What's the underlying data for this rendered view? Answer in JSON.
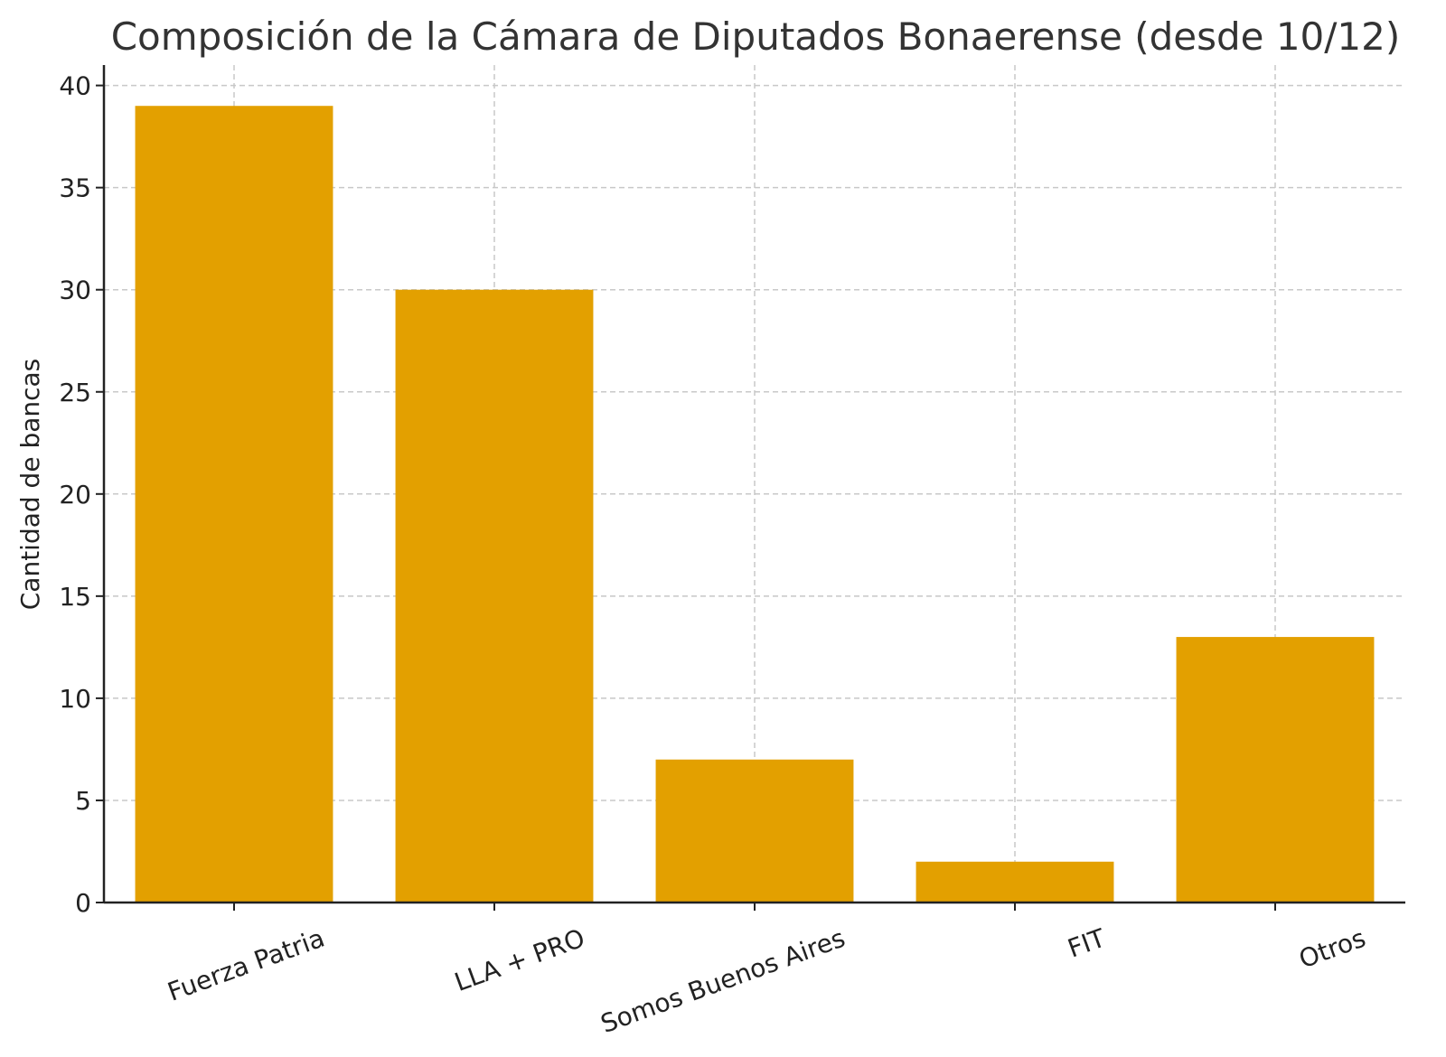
{
  "chart_data": {
    "type": "bar",
    "title": "Composición de la Cámara de Diputados Bonaerense (desde 10/12)",
    "xlabel": "",
    "ylabel": "Cantidad de bancas",
    "categories": [
      "Fuerza Patria",
      "LLA + PRO",
      "Somos Buenos Aires",
      "FIT",
      "Otros"
    ],
    "values": [
      39,
      30,
      7,
      2,
      13
    ],
    "ylim": [
      0,
      41
    ],
    "yticks": [
      0,
      5,
      10,
      15,
      20,
      25,
      30,
      35,
      40
    ],
    "grid": true,
    "bar_color": "#E3A000"
  }
}
